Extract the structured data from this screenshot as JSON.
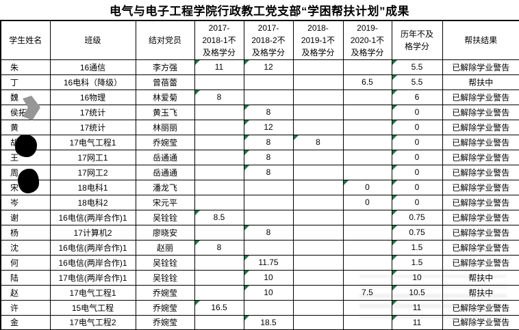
{
  "title": "电气与电子工程学院行政教工党支部“学困帮扶计划”成果",
  "colors": {
    "grid_line": "#000000",
    "text": "#000000",
    "error_triangle_green": "#217346",
    "redaction_gray": "#969696",
    "redaction_black": "#000000"
  },
  "icons": {
    "error_indicator": "green-corner-triangle"
  },
  "table": {
    "headers": [
      "学生姓名",
      "班级",
      "结对党员",
      "2017-\n2018-1不\n及格学分",
      "2017-\n2018-2不\n及格学分",
      "2018-\n2019-1不\n及格学分",
      "2019-\n2020-1不\n及格学分",
      "历年不及\n格学分",
      "帮扶结果"
    ],
    "rows": [
      {
        "name": "朱",
        "class": "16通信",
        "member": "李方强",
        "scores": [
          {
            "v": "11",
            "mark": true
          },
          {
            "v": "12",
            "mark": true
          },
          {
            "v": "",
            "mark": false
          },
          {
            "v": "",
            "mark": false
          },
          {
            "v": "5.5",
            "mark": true
          }
        ],
        "result": "已解除学业警告"
      },
      {
        "name": "丁",
        "class": "16电科（降级）",
        "member": "曾蓓蕾",
        "scores": [
          {
            "v": "",
            "mark": false
          },
          {
            "v": "",
            "mark": false
          },
          {
            "v": "",
            "mark": false
          },
          {
            "v": "6.5",
            "mark": false
          },
          {
            "v": "5.5",
            "mark": true
          }
        ],
        "result": "帮扶中"
      },
      {
        "name": "魏",
        "class": "16物理",
        "member": "林爱菊",
        "scores": [
          {
            "v": "8",
            "mark": true
          },
          {
            "v": "",
            "mark": false
          },
          {
            "v": "",
            "mark": false
          },
          {
            "v": "",
            "mark": false
          },
          {
            "v": "6",
            "mark": true
          }
        ],
        "result": "已解除学业警告"
      },
      {
        "name": "侯拓",
        "class": "17统计",
        "member": "黄玉飞",
        "scores": [
          {
            "v": "",
            "mark": false
          },
          {
            "v": "8",
            "mark": true
          },
          {
            "v": "",
            "mark": false
          },
          {
            "v": "",
            "mark": false
          },
          {
            "v": "0",
            "mark": true
          }
        ],
        "result": "已解除学业警告"
      },
      {
        "name": "黄",
        "class": "17统计",
        "member": "林丽丽",
        "scores": [
          {
            "v": "",
            "mark": false
          },
          {
            "v": "12",
            "mark": true
          },
          {
            "v": "",
            "mark": false
          },
          {
            "v": "",
            "mark": false
          },
          {
            "v": "0",
            "mark": true
          }
        ],
        "result": "已解除学业警告"
      },
      {
        "name": "胡",
        "class": "17电气工程1",
        "member": "乔婉莹",
        "scores": [
          {
            "v": "",
            "mark": false
          },
          {
            "v": "8",
            "mark": true
          },
          {
            "v": "8",
            "mark": true
          },
          {
            "v": "",
            "mark": false
          },
          {
            "v": "0",
            "mark": true
          }
        ],
        "result": "已解除学业警告"
      },
      {
        "name": "王",
        "class": "17网工1",
        "member": "岳通通",
        "scores": [
          {
            "v": "",
            "mark": false
          },
          {
            "v": "8",
            "mark": true
          },
          {
            "v": "",
            "mark": false
          },
          {
            "v": "",
            "mark": false
          },
          {
            "v": "0",
            "mark": true
          }
        ],
        "result": "已解除学业警告"
      },
      {
        "name": "周",
        "class": "17网工2",
        "member": "岳通通",
        "scores": [
          {
            "v": "",
            "mark": false
          },
          {
            "v": "8",
            "mark": true
          },
          {
            "v": "",
            "mark": false
          },
          {
            "v": "",
            "mark": false
          },
          {
            "v": "0",
            "mark": true
          }
        ],
        "result": "已解除学业警告"
      },
      {
        "name": "宋",
        "class": "18电科1",
        "member": "潘龙飞",
        "scores": [
          {
            "v": "",
            "mark": false
          },
          {
            "v": "",
            "mark": false
          },
          {
            "v": "",
            "mark": false
          },
          {
            "v": "0",
            "mark": true
          },
          {
            "v": "0",
            "mark": true
          }
        ],
        "result": "已解除学业警告"
      },
      {
        "name": "岑",
        "class": "18电科2",
        "member": "宋元平",
        "scores": [
          {
            "v": "",
            "mark": false
          },
          {
            "v": "",
            "mark": false
          },
          {
            "v": "",
            "mark": false
          },
          {
            "v": "0",
            "mark": false
          },
          {
            "v": "0",
            "mark": true
          }
        ],
        "result": "已解除学业警告"
      },
      {
        "name": "谢",
        "class": "16电信(两岸合作)1",
        "member": "吴铨铨",
        "scores": [
          {
            "v": "8.5",
            "mark": true
          },
          {
            "v": "",
            "mark": false
          },
          {
            "v": "",
            "mark": false
          },
          {
            "v": "",
            "mark": false
          },
          {
            "v": "0.75",
            "mark": true
          }
        ],
        "result": "已解除学业警告"
      },
      {
        "name": "杨",
        "class": "17计算机2",
        "member": "廖晓安",
        "scores": [
          {
            "v": "",
            "mark": false
          },
          {
            "v": "8",
            "mark": true
          },
          {
            "v": "",
            "mark": false
          },
          {
            "v": "",
            "mark": false
          },
          {
            "v": "0.75",
            "mark": true
          }
        ],
        "result": "已解除学业警告"
      },
      {
        "name": "沈",
        "class": "16电信(两岸合作)1",
        "member": "赵丽",
        "scores": [
          {
            "v": "8",
            "mark": true
          },
          {
            "v": "",
            "mark": false
          },
          {
            "v": "",
            "mark": false
          },
          {
            "v": "",
            "mark": false
          },
          {
            "v": "1.5",
            "mark": true
          }
        ],
        "result": "已解除学业警告"
      },
      {
        "name": "何",
        "class": "16电信(两岸合作)1",
        "member": "吴铨铨",
        "scores": [
          {
            "v": "",
            "mark": false
          },
          {
            "v": "11.75",
            "mark": true
          },
          {
            "v": "",
            "mark": false
          },
          {
            "v": "",
            "mark": false
          },
          {
            "v": "1.5",
            "mark": true
          }
        ],
        "result": "已解除学业警告"
      },
      {
        "name": "陆",
        "class": "17电信(两岸合作)1",
        "member": "吴铨铨",
        "scores": [
          {
            "v": "",
            "mark": false
          },
          {
            "v": "10",
            "mark": true
          },
          {
            "v": "",
            "mark": false
          },
          {
            "v": "",
            "mark": false
          },
          {
            "v": "10",
            "mark": true
          }
        ],
        "result": "帮扶中"
      },
      {
        "name": "赵",
        "class": "17电气工程1",
        "member": "乔婉莹",
        "scores": [
          {
            "v": "",
            "mark": false
          },
          {
            "v": "10",
            "mark": true
          },
          {
            "v": "",
            "mark": false
          },
          {
            "v": "7.5",
            "mark": false
          },
          {
            "v": "10.5",
            "mark": true
          }
        ],
        "result": "帮扶中"
      },
      {
        "name": "许",
        "class": "15电气工程",
        "member": "乔婉莹",
        "scores": [
          {
            "v": "16.5",
            "mark": true
          },
          {
            "v": "",
            "mark": false
          },
          {
            "v": "",
            "mark": false
          },
          {
            "v": "",
            "mark": false
          },
          {
            "v": "11",
            "mark": true
          }
        ],
        "result": "已解除学业警告"
      },
      {
        "name": "金",
        "class": "17电气工程2",
        "member": "乔婉莹",
        "scores": [
          {
            "v": "",
            "mark": false
          },
          {
            "v": "18.5",
            "mark": true
          },
          {
            "v": "",
            "mark": false
          },
          {
            "v": "",
            "mark": false
          },
          {
            "v": "11",
            "mark": true
          }
        ],
        "result": "已解除学业警告"
      }
    ]
  }
}
